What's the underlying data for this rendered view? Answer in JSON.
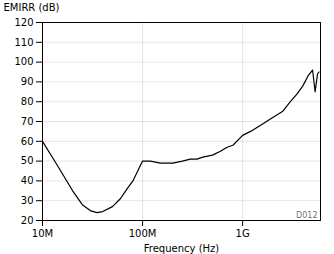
{
  "chart_data": {
    "type": "line",
    "xlabel": "Frequency (Hz)",
    "ylabel": "EMIRR (dB)",
    "x": [
      10000000,
      14000000,
      20000000,
      25000000,
      30000000,
      35000000,
      40000000,
      50000000,
      60000000,
      70000000,
      80000000,
      100000000,
      120000000,
      150000000,
      200000000,
      250000000,
      300000000,
      350000000,
      400000000,
      500000000,
      600000000,
      700000000,
      800000000,
      1000000000,
      1200000000,
      1500000000,
      2000000000,
      2500000000,
      3000000000,
      3500000000,
      4000000000,
      4500000000,
      5000000000,
      5300000000,
      5600000000,
      5800000000
    ],
    "values": [
      60,
      48,
      35,
      28,
      25,
      24,
      24.5,
      27,
      31,
      36,
      40,
      50,
      50,
      49,
      49,
      50,
      51,
      51,
      52,
      53,
      55,
      57,
      58,
      63,
      65,
      68,
      72,
      75,
      80,
      84,
      88,
      93,
      96,
      85,
      94,
      95
    ],
    "color": "#000000",
    "log": "x",
    "xlim": [
      10000000,
      6000000000
    ],
    "xticks": [
      {
        "value": 10000000,
        "label": "10M"
      },
      {
        "value": 100000000,
        "label": "100M"
      },
      {
        "value": 1000000000,
        "label": "1G"
      }
    ],
    "ylim": [
      20,
      120
    ],
    "yticks": [
      20,
      30,
      40,
      50,
      60,
      70,
      80,
      90,
      100,
      110,
      120
    ],
    "grid": true,
    "annotations": [
      {
        "text": "D012"
      }
    ]
  }
}
